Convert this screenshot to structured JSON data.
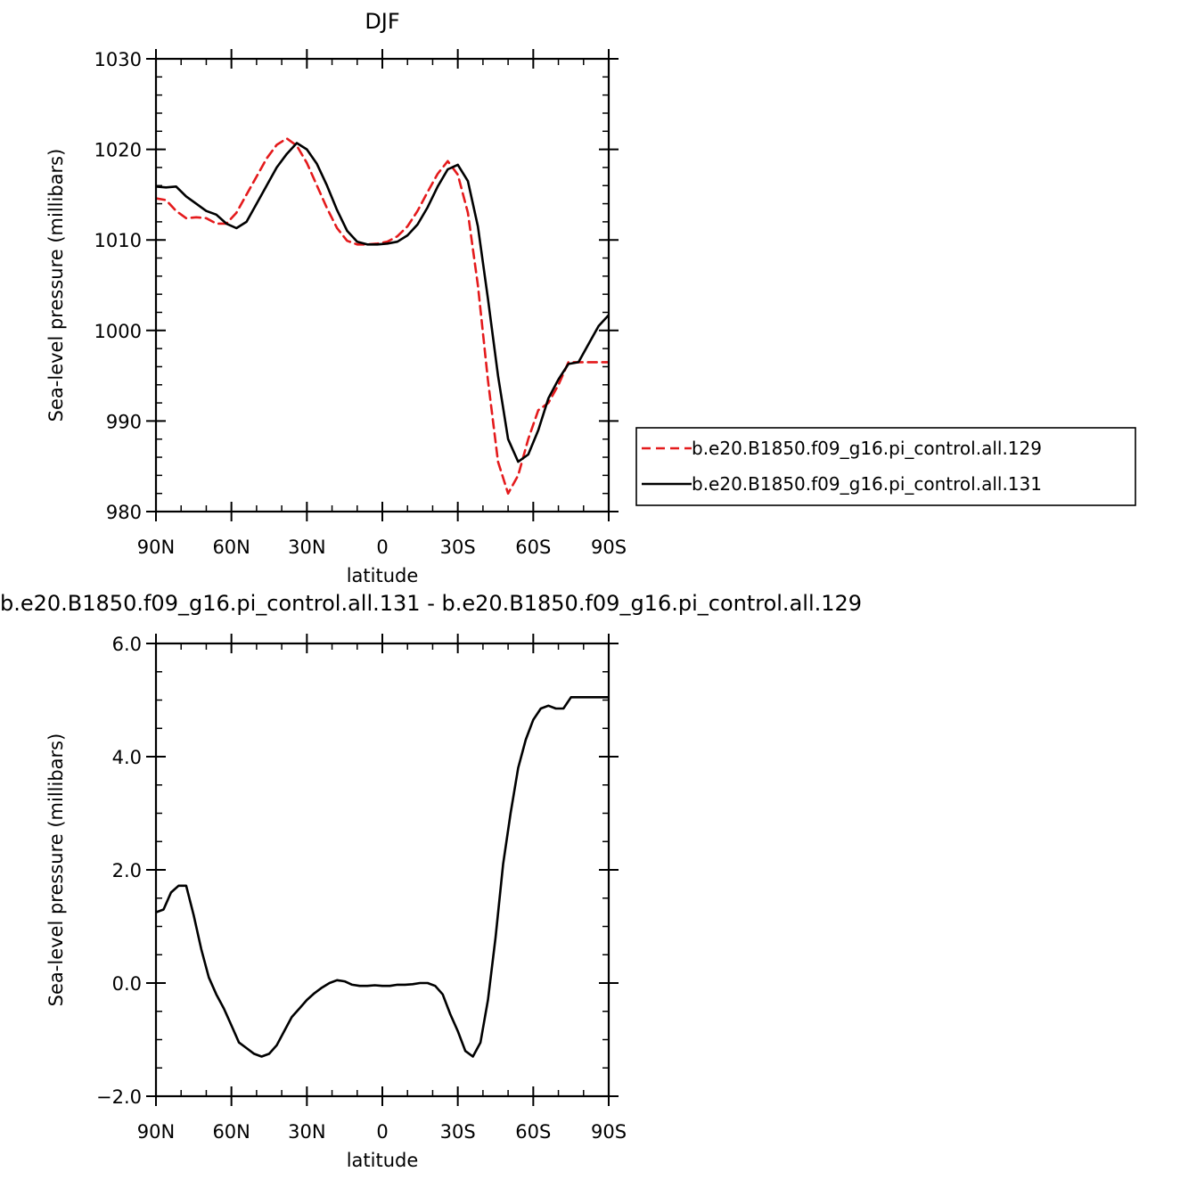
{
  "chart_data": [
    {
      "type": "line",
      "title": "DJF",
      "xlabel": "latitude",
      "ylabel": "Sea-level pressure (millibars)",
      "xlim": [
        90,
        -90
      ],
      "ylim": [
        980,
        1030
      ],
      "x_ticks": [
        {
          "value": 90,
          "label": "90N"
        },
        {
          "value": 60,
          "label": "60N"
        },
        {
          "value": 30,
          "label": "30N"
        },
        {
          "value": 0,
          "label": "0"
        },
        {
          "value": -30,
          "label": "30S"
        },
        {
          "value": -60,
          "label": "60S"
        },
        {
          "value": -90,
          "label": "90S"
        }
      ],
      "y_ticks": [
        {
          "value": 980,
          "label": "980"
        },
        {
          "value": 990,
          "label": "990"
        },
        {
          "value": 1000,
          "label": "1000"
        },
        {
          "value": 1010,
          "label": "1010"
        },
        {
          "value": 1020,
          "label": "1020"
        },
        {
          "value": 1030,
          "label": "1030"
        }
      ],
      "legend_position": "right",
      "series": [
        {
          "name": "b.e20.B1850.f09_g16.pi_control.all.129",
          "color": "#e41a1c",
          "dash": "dashed",
          "x": [
            90,
            86,
            82,
            78,
            74,
            70,
            66,
            62,
            58,
            54,
            50,
            46,
            42,
            38,
            34,
            30,
            26,
            22,
            18,
            14,
            10,
            6,
            2,
            -2,
            -6,
            -10,
            -14,
            -18,
            -22,
            -26,
            -30,
            -34,
            -38,
            -42,
            -46,
            -50,
            -54,
            -58,
            -62,
            -66,
            -70,
            -74,
            -78,
            -82,
            -86,
            -90
          ],
          "y": [
            1014.6,
            1014.4,
            1013.2,
            1012.4,
            1012.5,
            1012.4,
            1011.8,
            1011.8,
            1013.0,
            1015.0,
            1017.0,
            1019.0,
            1020.5,
            1021.2,
            1020.4,
            1018.5,
            1016.0,
            1013.5,
            1011.3,
            1009.9,
            1009.5,
            1009.5,
            1009.6,
            1009.8,
            1010.4,
            1011.5,
            1013.2,
            1015.3,
            1017.3,
            1018.7,
            1017.2,
            1013.0,
            1005.0,
            994.5,
            985.5,
            982.0,
            984.0,
            988.0,
            991.2,
            992.0,
            994.0,
            996.5,
            996.5,
            996.5,
            996.5,
            996.5
          ]
        },
        {
          "name": "b.e20.B1850.f09_g16.pi_control.all.131",
          "color": "#000000",
          "dash": "solid",
          "x": [
            90,
            86,
            82,
            78,
            74,
            70,
            66,
            62,
            58,
            54,
            50,
            46,
            42,
            38,
            34,
            30,
            26,
            22,
            18,
            14,
            10,
            6,
            2,
            -2,
            -6,
            -10,
            -14,
            -18,
            -22,
            -26,
            -30,
            -34,
            -38,
            -42,
            -46,
            -50,
            -54,
            -58,
            -62,
            -66,
            -70,
            -74,
            -78,
            -82,
            -86,
            -90
          ],
          "y": [
            1015.9,
            1015.8,
            1015.9,
            1014.8,
            1014.0,
            1013.2,
            1012.8,
            1011.8,
            1011.3,
            1012.0,
            1014.0,
            1016.0,
            1018.0,
            1019.5,
            1020.7,
            1020.0,
            1018.4,
            1016.0,
            1013.3,
            1011.0,
            1009.8,
            1009.5,
            1009.5,
            1009.6,
            1009.8,
            1010.5,
            1011.7,
            1013.6,
            1015.9,
            1017.8,
            1018.3,
            1016.5,
            1011.5,
            1003.5,
            995.0,
            988.0,
            985.5,
            986.3,
            989.0,
            992.5,
            994.6,
            996.3,
            996.5,
            998.5,
            1000.5,
            1001.7
          ]
        }
      ]
    },
    {
      "type": "line",
      "title": "b.e20.B1850.f09_g16.pi_control.all.131  -  b.e20.B1850.f09_g16.pi_control.all.129",
      "xlabel": "latitude",
      "ylabel": "Sea-level pressure (millibars)",
      "xlim": [
        90,
        -90
      ],
      "ylim": [
        -2,
        6
      ],
      "x_ticks": [
        {
          "value": 90,
          "label": "90N"
        },
        {
          "value": 60,
          "label": "60N"
        },
        {
          "value": 30,
          "label": "30N"
        },
        {
          "value": 0,
          "label": "0"
        },
        {
          "value": -30,
          "label": "30S"
        },
        {
          "value": -60,
          "label": "60S"
        },
        {
          "value": -90,
          "label": "90S"
        }
      ],
      "y_ticks": [
        {
          "value": -2,
          "label": "−2.0"
        },
        {
          "value": 0,
          "label": "0.0"
        },
        {
          "value": 2,
          "label": "2.0"
        },
        {
          "value": 4,
          "label": "4.0"
        },
        {
          "value": 6,
          "label": "6.0"
        }
      ],
      "series": [
        {
          "color": "#000000",
          "dash": "solid",
          "x": [
            90,
            87,
            84,
            81,
            78,
            75,
            72,
            69,
            66,
            63,
            60,
            57,
            54,
            51,
            48,
            45,
            42,
            39,
            36,
            33,
            30,
            27,
            24,
            21,
            18,
            15,
            12,
            9,
            6,
            3,
            0,
            -3,
            -6,
            -9,
            -12,
            -15,
            -18,
            -21,
            -24,
            -27,
            -30,
            -33,
            -36,
            -39,
            -42,
            -45,
            -48,
            -51,
            -54,
            -57,
            -60,
            -63,
            -66,
            -69,
            -72,
            -75,
            -78,
            -81,
            -84,
            -87,
            -90
          ],
          "y": [
            1.25,
            1.3,
            1.6,
            1.72,
            1.72,
            1.2,
            0.6,
            0.1,
            -0.2,
            -0.45,
            -0.75,
            -1.05,
            -1.15,
            -1.25,
            -1.3,
            -1.25,
            -1.1,
            -0.85,
            -0.6,
            -0.45,
            -0.3,
            -0.18,
            -0.08,
            0.0,
            0.05,
            0.03,
            -0.03,
            -0.05,
            -0.05,
            -0.04,
            -0.05,
            -0.05,
            -0.03,
            -0.03,
            -0.02,
            0.0,
            0.0,
            -0.05,
            -0.2,
            -0.55,
            -0.85,
            -1.2,
            -1.3,
            -1.05,
            -0.3,
            0.8,
            2.1,
            3.0,
            3.8,
            4.3,
            4.65,
            4.85,
            4.9,
            4.85,
            4.85,
            5.05,
            5.05,
            5.05,
            5.05,
            5.05,
            5.05
          ]
        }
      ]
    }
  ]
}
